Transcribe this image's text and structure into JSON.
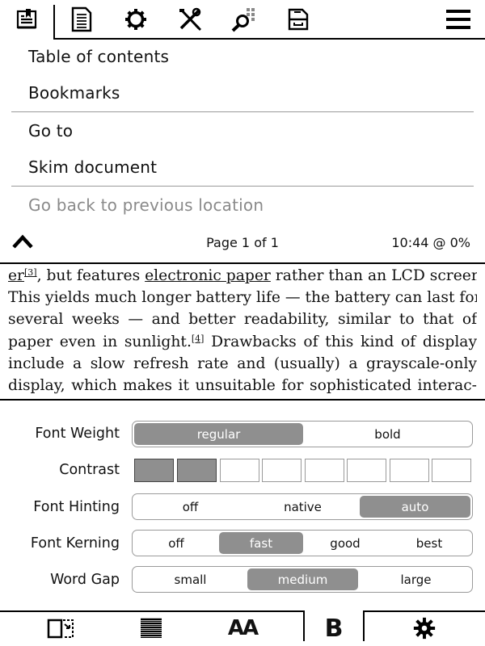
{
  "top_tabs": [
    {
      "name": "navigation",
      "icon": "bookmark-list-icon"
    },
    {
      "name": "document",
      "icon": "document-icon"
    },
    {
      "name": "settings",
      "icon": "gear-icon"
    },
    {
      "name": "tools",
      "icon": "tools-icon"
    },
    {
      "name": "search",
      "icon": "search-icon"
    },
    {
      "name": "filemanager",
      "icon": "cabinet-icon"
    },
    {
      "name": "main-menu",
      "icon": "hamburger-icon"
    }
  ],
  "menu": {
    "items": [
      {
        "label": "Table of contents",
        "enabled": true
      },
      {
        "label": "Bookmarks",
        "enabled": true
      },
      {
        "label": "Go to",
        "enabled": true
      },
      {
        "label": "Skim document",
        "enabled": true
      },
      {
        "label": "Go back to previous location",
        "enabled": false
      }
    ],
    "page_info": "Page 1 of 1",
    "status": "10:44 @ 0%"
  },
  "reader": {
    "l1_a": "er",
    "l1_sup": "[3]",
    "l1_b": ", but features ",
    "l1_link": "electronic paper",
    "l1_c": " rather than an LCD screen.",
    "l2": "This yields much longer battery life — the battery can last for",
    "l3": "several weeks — and better readability, similar to that of",
    "l4_a": "paper even in sunlight.",
    "l4_sup": "[4]",
    "l4_b": " Drawbacks of this kind of display",
    "l5": "include a slow refresh rate and (usually) a grayscale-only",
    "l6": "display, which makes it unsuitable for sophisticated interac-"
  },
  "settings": {
    "font_weight": {
      "label": "Font Weight",
      "options": [
        "regular",
        "bold"
      ],
      "selected": "regular"
    },
    "contrast": {
      "label": "Contrast",
      "levels": 8,
      "value": 2
    },
    "font_hinting": {
      "label": "Font Hinting",
      "options": [
        "off",
        "native",
        "auto"
      ],
      "selected": "auto"
    },
    "font_kerning": {
      "label": "Font Kerning",
      "options": [
        "off",
        "fast",
        "good",
        "best"
      ],
      "selected": "fast"
    },
    "word_gap": {
      "label": "Word Gap",
      "options": [
        "small",
        "medium",
        "large"
      ],
      "selected": "medium"
    }
  },
  "bottom_tabs": [
    {
      "name": "page-crop",
      "icon": "crop-icon"
    },
    {
      "name": "page-layout",
      "icon": "lines-icon"
    },
    {
      "name": "font-size",
      "icon": "font-size-icon",
      "text": "AA"
    },
    {
      "name": "font-weight",
      "icon": "bold-icon",
      "text": "B",
      "active": true
    },
    {
      "name": "more-settings",
      "icon": "gear-icon"
    }
  ]
}
